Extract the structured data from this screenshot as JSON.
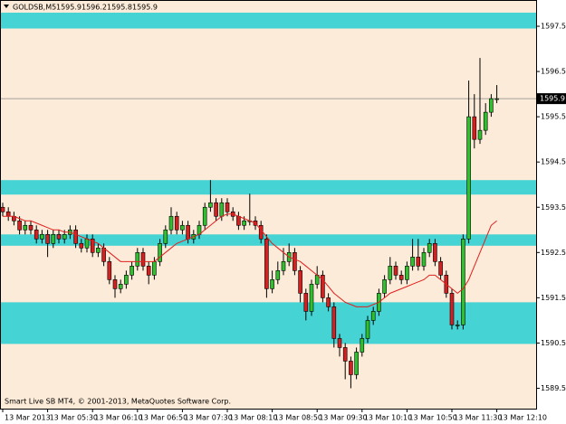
{
  "chart_data": {
    "type": "candlestick",
    "title": "GOLDSB,M5",
    "info_values": [
      1595.9,
      1596.2,
      1595.8,
      1595.9
    ],
    "copyright": "Smart Live SB MT4, © 2001-2013, MetaQuotes Software Corp.",
    "categories": [
      "13 Mar 2013",
      null,
      null,
      null,
      null,
      null,
      null,
      null,
      "13 Mar 05:30",
      null,
      null,
      null,
      null,
      null,
      null,
      null,
      "13 Mar 06:10",
      null,
      null,
      null,
      null,
      null,
      null,
      null,
      "13 Mar 06:50",
      null,
      null,
      null,
      null,
      null,
      null,
      null,
      "13 Mar 07:30",
      null,
      null,
      null,
      null,
      null,
      null,
      null,
      "13 Mar 08:10",
      null,
      null,
      null,
      null,
      null,
      null,
      null,
      "13 Mar 08:50",
      null,
      null,
      null,
      null,
      null,
      null,
      null,
      "13 Mar 09:30",
      null,
      null,
      null,
      null,
      null,
      null,
      null,
      "13 Mar 10:10",
      null,
      null,
      null,
      null,
      null,
      null,
      null,
      "13 Mar 10:50",
      null,
      null,
      null,
      null,
      null,
      null,
      null,
      "13 Mar 11:30",
      null,
      null,
      null,
      null,
      null,
      null,
      null,
      "13 Mar 12:10"
    ],
    "open": [
      1593.5,
      1593.4,
      1593.3,
      1593.2,
      1593.0,
      1593.1,
      1593.0,
      1592.8,
      1592.9,
      1592.7,
      1592.9,
      1592.8,
      1592.9,
      1593.0,
      1592.7,
      1592.6,
      1592.8,
      1592.5,
      1592.6,
      1592.3,
      1591.9,
      1591.7,
      1591.8,
      1592.0,
      1592.2,
      1592.5,
      1592.2,
      1592.0,
      1592.3,
      1592.7,
      1593.0,
      1593.3,
      1593.0,
      1593.1,
      1592.8,
      1592.9,
      1593.1,
      1593.5,
      1593.6,
      1593.3,
      1593.6,
      1593.4,
      1593.3,
      1593.1,
      1593.2,
      1593.2,
      1593.1,
      1592.8,
      1591.7,
      1591.9,
      1592.1,
      1592.3,
      1592.5,
      1592.1,
      1591.6,
      1591.2,
      1591.8,
      1592.0,
      1591.5,
      1591.3,
      1590.6,
      1590.4,
      1590.1,
      1589.8,
      1590.3,
      1590.6,
      1591.0,
      1591.2,
      1591.6,
      1591.9,
      1592.2,
      1592.0,
      1591.9,
      1592.2,
      1592.4,
      1592.2,
      1592.5,
      1592.7,
      1592.3,
      1592.0,
      1591.6,
      1590.9,
      1590.9,
      1592.8,
      1595.5,
      1595.0,
      1595.2,
      1595.6,
      1595.9
    ],
    "high": [
      1593.6,
      1593.5,
      1593.4,
      1593.3,
      1593.2,
      1593.2,
      1593.1,
      1593.0,
      1593.0,
      1593.0,
      1593.0,
      1593.0,
      1593.1,
      1593.1,
      1592.8,
      1592.9,
      1592.9,
      1592.7,
      1592.7,
      1592.4,
      1592.0,
      1591.9,
      1592.1,
      1592.3,
      1592.6,
      1592.6,
      1592.3,
      1592.4,
      1592.8,
      1593.1,
      1593.5,
      1593.4,
      1593.2,
      1593.2,
      1593.0,
      1593.2,
      1593.6,
      1594.1,
      1593.7,
      1593.7,
      1593.7,
      1593.5,
      1593.4,
      1593.3,
      1593.8,
      1593.3,
      1593.2,
      1592.9,
      1592.1,
      1592.3,
      1592.6,
      1592.7,
      1592.6,
      1592.2,
      1591.7,
      1591.9,
      1592.2,
      1592.1,
      1591.6,
      1591.4,
      1590.7,
      1590.5,
      1590.2,
      1590.4,
      1590.7,
      1591.1,
      1591.3,
      1591.7,
      1592.0,
      1592.4,
      1592.3,
      1592.1,
      1592.3,
      1592.8,
      1592.8,
      1592.6,
      1592.8,
      1592.8,
      1592.4,
      1592.1,
      1591.7,
      1591.0,
      1592.9,
      1596.3,
      1596.0,
      1596.8,
      1595.8,
      1596.0,
      1596.2
    ],
    "low": [
      1593.3,
      1593.2,
      1593.1,
      1592.9,
      1592.9,
      1592.9,
      1592.7,
      1592.7,
      1592.4,
      1592.6,
      1592.7,
      1592.7,
      1592.8,
      1592.6,
      1592.5,
      1592.5,
      1592.4,
      1592.4,
      1592.2,
      1591.8,
      1591.5,
      1591.6,
      1591.7,
      1591.9,
      1592.1,
      1592.1,
      1591.8,
      1591.9,
      1592.2,
      1592.6,
      1592.9,
      1592.9,
      1592.9,
      1592.7,
      1592.7,
      1592.8,
      1593.0,
      1593.4,
      1593.2,
      1593.2,
      1593.3,
      1593.2,
      1593.0,
      1593.0,
      1593.1,
      1593.0,
      1592.7,
      1591.5,
      1591.6,
      1591.8,
      1592.0,
      1592.2,
      1592.0,
      1591.4,
      1591.0,
      1591.1,
      1591.7,
      1591.4,
      1591.2,
      1590.4,
      1590.2,
      1589.7,
      1589.5,
      1589.7,
      1590.2,
      1590.5,
      1590.9,
      1591.1,
      1591.5,
      1591.8,
      1591.9,
      1591.8,
      1591.8,
      1592.1,
      1592.1,
      1592.1,
      1592.4,
      1592.2,
      1591.9,
      1591.5,
      1590.8,
      1590.8,
      1590.8,
      1592.7,
      1594.8,
      1594.9,
      1595.1,
      1595.5,
      1595.8
    ],
    "close": [
      1593.4,
      1593.3,
      1593.2,
      1593.0,
      1593.1,
      1593.0,
      1592.8,
      1592.9,
      1592.7,
      1592.9,
      1592.8,
      1592.9,
      1593.0,
      1592.7,
      1592.6,
      1592.8,
      1592.5,
      1592.6,
      1592.3,
      1591.9,
      1591.7,
      1591.8,
      1592.0,
      1592.2,
      1592.5,
      1592.2,
      1592.0,
      1592.3,
      1592.7,
      1593.0,
      1593.3,
      1593.0,
      1593.1,
      1592.8,
      1592.9,
      1593.1,
      1593.5,
      1593.6,
      1593.3,
      1593.6,
      1593.4,
      1593.3,
      1593.1,
      1593.2,
      1593.2,
      1593.1,
      1592.8,
      1591.7,
      1591.9,
      1592.1,
      1592.3,
      1592.5,
      1592.1,
      1591.6,
      1591.2,
      1591.8,
      1592.0,
      1591.5,
      1591.3,
      1590.6,
      1590.4,
      1590.1,
      1589.8,
      1590.3,
      1590.6,
      1591.0,
      1591.2,
      1591.6,
      1591.9,
      1592.2,
      1592.0,
      1591.9,
      1592.2,
      1592.4,
      1592.2,
      1592.5,
      1592.7,
      1592.3,
      1592.0,
      1591.6,
      1590.9,
      1590.9,
      1592.8,
      1595.5,
      1595.0,
      1595.2,
      1595.6,
      1595.9,
      1595.9
    ],
    "ma": {
      "color": "#e02020",
      "values": [
        1593.3,
        1593.3,
        1593.3,
        1593.25,
        1593.2,
        1593.2,
        1593.15,
        1593.1,
        1593.05,
        1593.0,
        1593.0,
        1592.95,
        1592.95,
        1592.9,
        1592.85,
        1592.8,
        1592.75,
        1592.7,
        1592.6,
        1592.5,
        1592.4,
        1592.3,
        1592.3,
        1592.3,
        1592.3,
        1592.3,
        1592.3,
        1592.3,
        1592.4,
        1592.5,
        1592.6,
        1592.7,
        1592.75,
        1592.8,
        1592.85,
        1592.9,
        1593.0,
        1593.1,
        1593.2,
        1593.3,
        1593.35,
        1593.35,
        1593.3,
        1593.25,
        1593.2,
        1593.15,
        1593.0,
        1592.85,
        1592.7,
        1592.6,
        1592.5,
        1592.4,
        1592.35,
        1592.3,
        1592.2,
        1592.1,
        1592.0,
        1591.9,
        1591.75,
        1591.6,
        1591.5,
        1591.4,
        1591.35,
        1591.3,
        1591.3,
        1591.3,
        1591.35,
        1591.4,
        1591.5,
        1591.6,
        1591.65,
        1591.7,
        1591.75,
        1591.8,
        1591.85,
        1591.9,
        1592.0,
        1592.0,
        1591.9,
        1591.8,
        1591.7,
        1591.6,
        1591.7,
        1591.9,
        1592.2,
        1592.5,
        1592.8,
        1593.1,
        1593.2
      ]
    },
    "zones": [
      [
        1597.45,
        1597.8
      ],
      [
        1593.78,
        1594.1
      ],
      [
        1592.65,
        1592.9
      ],
      [
        1590.48,
        1591.4
      ]
    ],
    "zone_color": "#45d3d3",
    "bull_color": "#2fbf2f",
    "bear_color": "#d42020",
    "background": "#fcebd8",
    "bid": 1595.9,
    "ylim": [
      1589.05,
      1598.08
    ],
    "yticks": [
      1589.5,
      1590.5,
      1591.5,
      1592.5,
      1593.5,
      1594.5,
      1595.5,
      1596.5,
      1597.5
    ]
  }
}
